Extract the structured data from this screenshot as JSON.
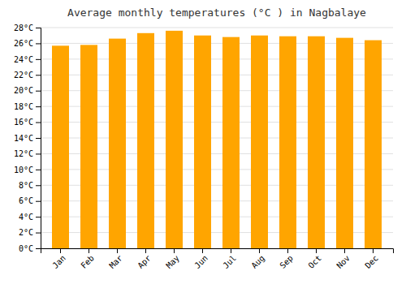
{
  "chart_data": {
    "type": "bar",
    "title": "Average monthly temperatures (°C ) in Nagbalaye",
    "categories": [
      "Jan",
      "Feb",
      "Mar",
      "Apr",
      "May",
      "Jun",
      "Jul",
      "Aug",
      "Sep",
      "Oct",
      "Nov",
      "Dec"
    ],
    "values": [
      25.7,
      25.8,
      26.6,
      27.3,
      27.6,
      27.0,
      26.8,
      27.0,
      26.9,
      26.9,
      26.7,
      26.4
    ],
    "color": "#FFA500",
    "ylim": [
      0,
      28
    ],
    "yticks": [
      {
        "value": 0,
        "label": "0°C"
      },
      {
        "value": 2,
        "label": "2°C"
      },
      {
        "value": 4,
        "label": "4°C"
      },
      {
        "value": 6,
        "label": "6°C"
      },
      {
        "value": 8,
        "label": "8°C"
      },
      {
        "value": 10,
        "label": "10°C"
      },
      {
        "value": 12,
        "label": "12°C"
      },
      {
        "value": 14,
        "label": "14°C"
      },
      {
        "value": 16,
        "label": "16°C"
      },
      {
        "value": 18,
        "label": "18°C"
      },
      {
        "value": 20,
        "label": "20°C"
      },
      {
        "value": 22,
        "label": "22°C"
      },
      {
        "value": 24,
        "label": "24°C"
      },
      {
        "value": 26,
        "label": "26°C"
      },
      {
        "value": 28,
        "label": "28°C"
      }
    ],
    "grid": true
  }
}
